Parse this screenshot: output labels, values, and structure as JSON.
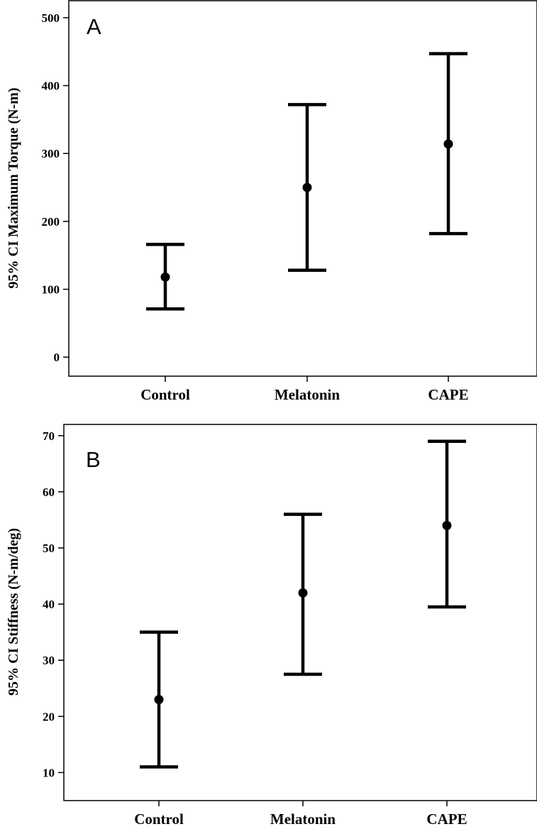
{
  "chart_data": [
    {
      "type": "errorbar",
      "panel_label": "A",
      "ylabel": "95% CI Maximum Torque (N-m)",
      "xlabel": "",
      "categories": [
        "Control",
        "Melatonin",
        "CAPE"
      ],
      "ylim": [
        -28,
        525
      ],
      "yticks": [
        0,
        100,
        200,
        300,
        400,
        500
      ],
      "grid": false,
      "series": [
        {
          "mean": [
            118,
            250,
            314
          ],
          "lower": [
            71,
            128,
            182
          ],
          "upper": [
            166,
            372,
            447
          ]
        }
      ]
    },
    {
      "type": "errorbar",
      "panel_label": "B",
      "ylabel": "95% CI Stiffness (N-m/deg)",
      "xlabel": "",
      "categories": [
        "Control",
        "Melatonin",
        "CAPE"
      ],
      "ylim": [
        5,
        72
      ],
      "yticks": [
        10,
        20,
        30,
        40,
        50,
        60,
        70
      ],
      "grid": false,
      "series": [
        {
          "mean": [
            23,
            42,
            54
          ],
          "lower": [
            11,
            27.5,
            39.5
          ],
          "upper": [
            35,
            56,
            69
          ]
        }
      ]
    }
  ]
}
